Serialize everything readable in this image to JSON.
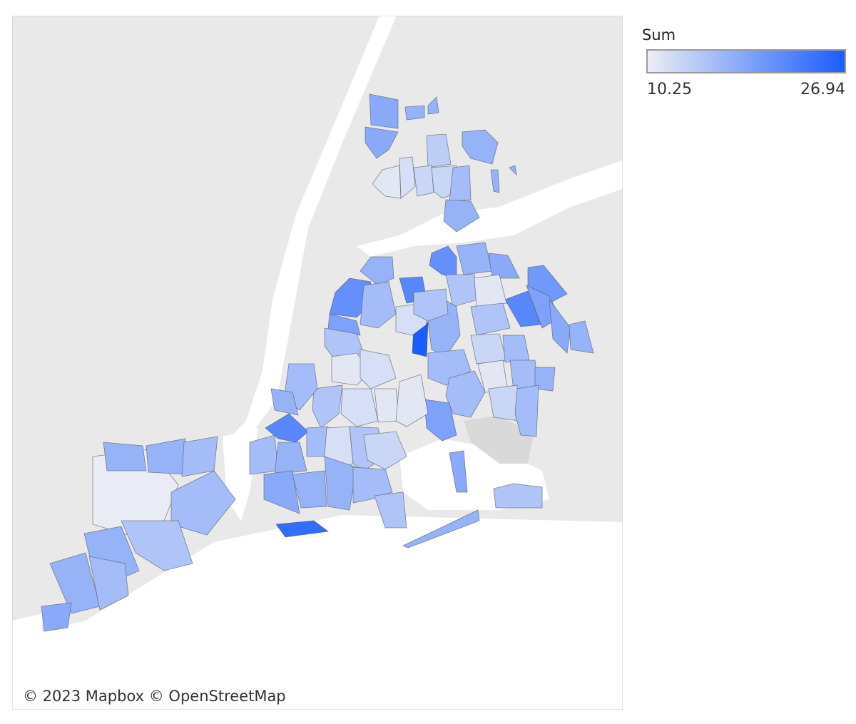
{
  "legend": {
    "title": "Sum",
    "min": 10.25,
    "max": 26.94,
    "color_low": "#eceef4",
    "color_high": "#1a5cff"
  },
  "attribution": "© 2023 Mapbox © OpenStreetMap",
  "zones": {
    "values": [
      18,
      18,
      17,
      17,
      14,
      17,
      11,
      12,
      13,
      13,
      16,
      17,
      17,
      17,
      21,
      17,
      18,
      20,
      22,
      19,
      15,
      11,
      15,
      17,
      26.94,
      12,
      22,
      15,
      17,
      21,
      19,
      16,
      15,
      13,
      16,
      16,
      17,
      18,
      17,
      16,
      16,
      11,
      13,
      16,
      19,
      18,
      15,
      17,
      11,
      12,
      11,
      11,
      12,
      15,
      16,
      17,
      22,
      16,
      17,
      16,
      12,
      15,
      13,
      18,
      17,
      17,
      16,
      15,
      25,
      10.5,
      17,
      17,
      16,
      16,
      15,
      17,
      17,
      18,
      16
    ]
  }
}
